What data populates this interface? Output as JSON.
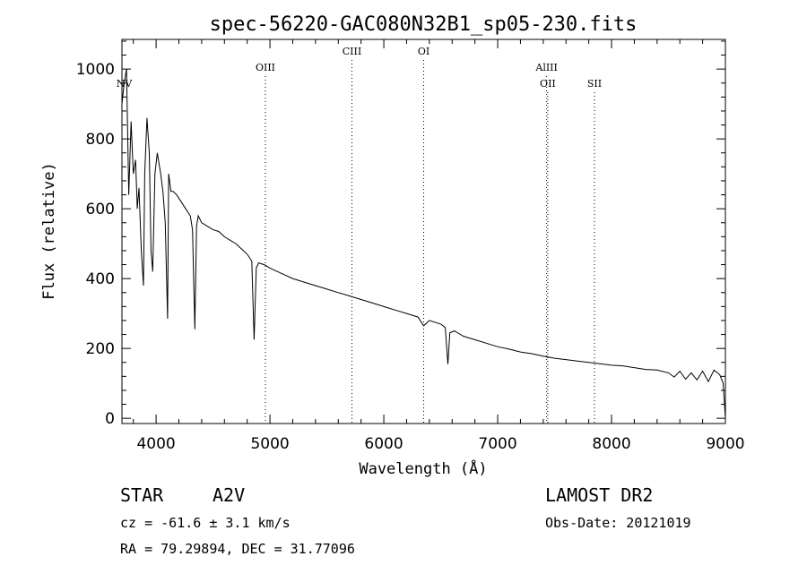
{
  "chart_data": {
    "type": "line",
    "title": "spec-56220-GAC080N32B1_sp05-230.fits",
    "xlabel": "Wavelength (Å)",
    "ylabel": "Flux (relative)",
    "xlim": [
      3700,
      9000
    ],
    "ylim": [
      -15,
      1085
    ],
    "x_ticks": [
      4000,
      5000,
      6000,
      7000,
      8000,
      9000
    ],
    "y_ticks": [
      0,
      200,
      400,
      600,
      800,
      1000
    ],
    "grid": false,
    "series": [
      {
        "x": [
          3700,
          3720,
          3740,
          3760,
          3780,
          3800,
          3820,
          3835,
          3850,
          3870,
          3889,
          3900,
          3920,
          3940,
          3955,
          3970,
          3990,
          4010,
          4040,
          4060,
          4080,
          4101,
          4110,
          4130,
          4150,
          4180,
          4220,
          4260,
          4300,
          4320,
          4340,
          4355,
          4370,
          4400,
          4450,
          4500,
          4550,
          4600,
          4650,
          4700,
          4750,
          4800,
          4840,
          4861,
          4880,
          4900,
          4950,
          5000,
          5100,
          5200,
          5300,
          5400,
          5500,
          5600,
          5700,
          5800,
          5900,
          6000,
          6100,
          6200,
          6300,
          6350,
          6400,
          6500,
          6540,
          6563,
          6580,
          6620,
          6700,
          6800,
          6900,
          7000,
          7100,
          7200,
          7300,
          7400,
          7500,
          7600,
          7700,
          7800,
          7900,
          8000,
          8100,
          8200,
          8300,
          8400,
          8500,
          8550,
          8600,
          8650,
          8700,
          8750,
          8800,
          8850,
          8900,
          8950,
          8980,
          9000
        ],
        "y": [
          900,
          960,
          1000,
          640,
          850,
          700,
          740,
          600,
          660,
          480,
          380,
          700,
          860,
          760,
          480,
          420,
          700,
          760,
          700,
          650,
          560,
          285,
          700,
          650,
          650,
          640,
          620,
          600,
          580,
          540,
          255,
          550,
          580,
          560,
          550,
          540,
          535,
          520,
          510,
          500,
          485,
          470,
          450,
          225,
          430,
          445,
          440,
          430,
          415,
          400,
          390,
          380,
          370,
          360,
          350,
          340,
          330,
          320,
          310,
          300,
          290,
          265,
          280,
          270,
          260,
          155,
          245,
          250,
          235,
          225,
          215,
          205,
          198,
          190,
          185,
          178,
          172,
          168,
          164,
          160,
          156,
          152,
          150,
          145,
          140,
          138,
          130,
          118,
          135,
          112,
          130,
          110,
          135,
          105,
          138,
          125,
          100,
          0
        ]
      }
    ],
    "line_markers": [
      {
        "label": "NV",
        "x": 3720
      },
      {
        "label": "OIII",
        "x": 4960
      },
      {
        "label": "CIII",
        "x": 5720
      },
      {
        "label": "OI",
        "x": 6350
      },
      {
        "label": "AlIII",
        "x": 7430
      },
      {
        "label": "OII",
        "x": 7440
      },
      {
        "label": "SII",
        "x": 7850
      }
    ]
  },
  "info": {
    "object_class": "STAR",
    "subclass": "A2V",
    "survey": "LAMOST DR2",
    "cz": "cz = -61.6 ± 3.1 km/s",
    "obs_date": "Obs-Date: 20121019",
    "coords": "RA =  79.29894, DEC =  31.77096"
  }
}
